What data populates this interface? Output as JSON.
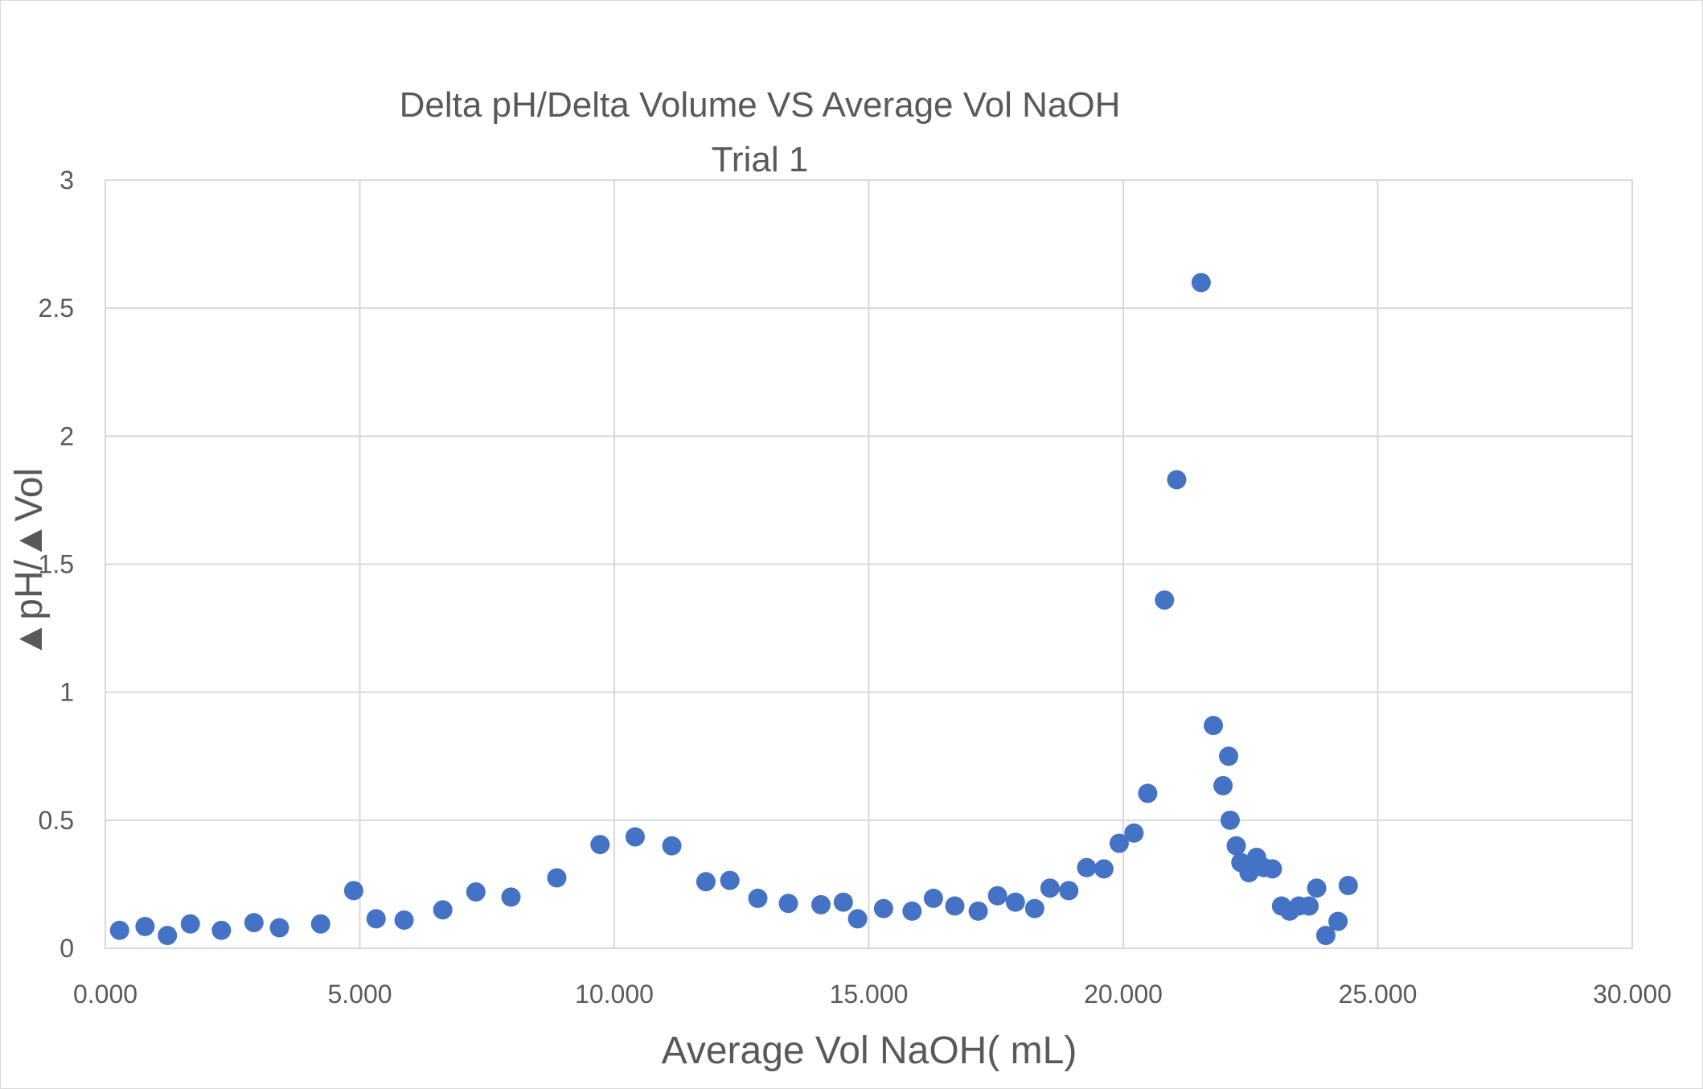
{
  "chart_data": {
    "type": "scatter",
    "title": "Delta pH/Delta Volume VS Average Vol NaOH",
    "subtitle": "Trial 1",
    "xlabel": "Average Vol NaOH( mL)",
    "ylabel": "▲pH/▲Vol",
    "xlim": [
      0,
      30
    ],
    "ylim": [
      0,
      3
    ],
    "x_ticks": [
      0,
      5,
      10,
      15,
      20,
      25,
      30
    ],
    "x_tick_labels": [
      "0.000",
      "5.000",
      "10.000",
      "15.000",
      "20.000",
      "25.000",
      "30.000"
    ],
    "y_ticks": [
      0,
      0.5,
      1,
      1.5,
      2,
      2.5,
      3
    ],
    "y_tick_labels": [
      "0",
      "0.5",
      "1",
      "1.5",
      "2",
      "2.5",
      "3"
    ],
    "grid": true,
    "marker_color": "#4472c4",
    "series": [
      {
        "name": "Trial 1",
        "x": [
          0.28,
          0.78,
          1.22,
          1.67,
          2.28,
          2.92,
          3.42,
          4.23,
          4.88,
          5.32,
          5.87,
          6.63,
          7.28,
          7.97,
          8.87,
          9.72,
          10.41,
          11.13,
          11.8,
          12.27,
          12.82,
          13.42,
          14.06,
          14.5,
          14.78,
          15.29,
          15.85,
          16.27,
          16.69,
          17.15,
          17.53,
          17.88,
          18.26,
          18.56,
          18.93,
          19.28,
          19.62,
          19.92,
          20.21,
          20.48,
          20.81,
          21.05,
          21.53,
          21.77,
          21.96,
          22.07,
          22.1,
          22.22,
          22.31,
          22.47,
          22.62,
          22.76,
          22.93,
          23.11,
          23.27,
          23.45,
          23.65,
          23.8,
          23.98,
          24.22,
          24.42
        ],
        "y": [
          0.07,
          0.085,
          0.05,
          0.095,
          0.07,
          0.1,
          0.08,
          0.095,
          0.225,
          0.115,
          0.11,
          0.15,
          0.22,
          0.2,
          0.275,
          0.405,
          0.435,
          0.4,
          0.26,
          0.265,
          0.195,
          0.175,
          0.17,
          0.18,
          0.115,
          0.155,
          0.145,
          0.195,
          0.165,
          0.145,
          0.205,
          0.18,
          0.155,
          0.235,
          0.225,
          0.315,
          0.31,
          0.41,
          0.45,
          0.605,
          1.36,
          1.83,
          2.6,
          0.87,
          0.635,
          0.75,
          0.5,
          0.4,
          0.335,
          0.295,
          0.355,
          0.315,
          0.31,
          0.165,
          0.145,
          0.165,
          0.165,
          0.235,
          0.05,
          0.105,
          0.245
        ]
      }
    ]
  }
}
